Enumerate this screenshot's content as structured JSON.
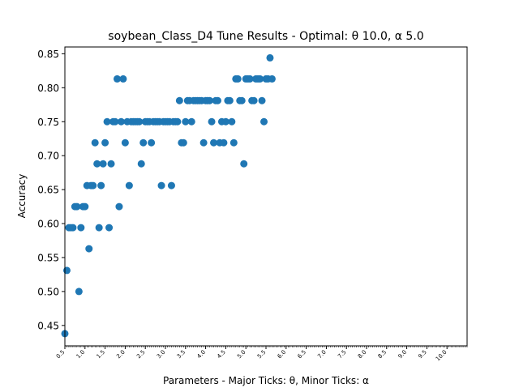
{
  "chart_data": {
    "type": "scatter",
    "title": "soybean_Class_D4 Tune Results - Optimal: θ 10.0, α 5.0",
    "xlabel": "Parameters - Major Ticks: θ, Minor Ticks: α",
    "ylabel": "Accuracy",
    "xlim": [
      0.5,
      10.5
    ],
    "ylim": [
      0.42,
      0.86
    ],
    "grid": false,
    "point_color": "#1f77b4",
    "x_major_ticks": [
      "0.5",
      "1.0",
      "1.5",
      "2.0",
      "2.5",
      "3.0",
      "3.5",
      "4.0",
      "4.5",
      "5.0",
      "5.5",
      "6.0",
      "6.5",
      "7.0",
      "7.5",
      "8.0",
      "8.5",
      "9.0",
      "9.5",
      "10.0"
    ],
    "y_ticks": [
      "0.45",
      "0.50",
      "0.55",
      "0.60",
      "0.65",
      "0.70",
      "0.75",
      "0.80",
      "0.85"
    ],
    "points": [
      {
        "x": 0.5,
        "y": 0.438
      },
      {
        "x": 0.55,
        "y": 0.531
      },
      {
        "x": 0.6,
        "y": 0.594
      },
      {
        "x": 0.65,
        "y": 0.594
      },
      {
        "x": 0.7,
        "y": 0.594
      },
      {
        "x": 0.75,
        "y": 0.625
      },
      {
        "x": 0.8,
        "y": 0.625
      },
      {
        "x": 0.85,
        "y": 0.5
      },
      {
        "x": 0.9,
        "y": 0.594
      },
      {
        "x": 0.95,
        "y": 0.625
      },
      {
        "x": 1.0,
        "y": 0.625
      },
      {
        "x": 1.05,
        "y": 0.656
      },
      {
        "x": 1.1,
        "y": 0.563
      },
      {
        "x": 1.15,
        "y": 0.656
      },
      {
        "x": 1.2,
        "y": 0.656
      },
      {
        "x": 1.25,
        "y": 0.719
      },
      {
        "x": 1.3,
        "y": 0.688
      },
      {
        "x": 1.35,
        "y": 0.594
      },
      {
        "x": 1.4,
        "y": 0.656
      },
      {
        "x": 1.45,
        "y": 0.688
      },
      {
        "x": 1.5,
        "y": 0.719
      },
      {
        "x": 1.55,
        "y": 0.75
      },
      {
        "x": 1.6,
        "y": 0.594
      },
      {
        "x": 1.65,
        "y": 0.688
      },
      {
        "x": 1.7,
        "y": 0.75
      },
      {
        "x": 1.75,
        "y": 0.75
      },
      {
        "x": 1.8,
        "y": 0.813
      },
      {
        "x": 1.85,
        "y": 0.625
      },
      {
        "x": 1.9,
        "y": 0.75
      },
      {
        "x": 1.95,
        "y": 0.813
      },
      {
        "x": 2.0,
        "y": 0.719
      },
      {
        "x": 2.05,
        "y": 0.75
      },
      {
        "x": 2.1,
        "y": 0.656
      },
      {
        "x": 2.15,
        "y": 0.75
      },
      {
        "x": 2.2,
        "y": 0.75
      },
      {
        "x": 2.25,
        "y": 0.75
      },
      {
        "x": 2.3,
        "y": 0.75
      },
      {
        "x": 2.35,
        "y": 0.75
      },
      {
        "x": 2.4,
        "y": 0.688
      },
      {
        "x": 2.45,
        "y": 0.719
      },
      {
        "x": 2.5,
        "y": 0.75
      },
      {
        "x": 2.55,
        "y": 0.75
      },
      {
        "x": 2.6,
        "y": 0.75
      },
      {
        "x": 2.65,
        "y": 0.719
      },
      {
        "x": 2.7,
        "y": 0.75
      },
      {
        "x": 2.75,
        "y": 0.75
      },
      {
        "x": 2.8,
        "y": 0.75
      },
      {
        "x": 2.85,
        "y": 0.75
      },
      {
        "x": 2.9,
        "y": 0.656
      },
      {
        "x": 2.95,
        "y": 0.75
      },
      {
        "x": 3.0,
        "y": 0.75
      },
      {
        "x": 3.05,
        "y": 0.75
      },
      {
        "x": 3.1,
        "y": 0.75
      },
      {
        "x": 3.15,
        "y": 0.656
      },
      {
        "x": 3.2,
        "y": 0.75
      },
      {
        "x": 3.25,
        "y": 0.75
      },
      {
        "x": 3.3,
        "y": 0.75
      },
      {
        "x": 3.35,
        "y": 0.781
      },
      {
        "x": 3.4,
        "y": 0.719
      },
      {
        "x": 3.45,
        "y": 0.719
      },
      {
        "x": 3.5,
        "y": 0.75
      },
      {
        "x": 3.55,
        "y": 0.781
      },
      {
        "x": 3.6,
        "y": 0.781
      },
      {
        "x": 3.65,
        "y": 0.75
      },
      {
        "x": 3.7,
        "y": 0.781
      },
      {
        "x": 3.75,
        "y": 0.781
      },
      {
        "x": 3.8,
        "y": 0.781
      },
      {
        "x": 3.85,
        "y": 0.781
      },
      {
        "x": 3.9,
        "y": 0.781
      },
      {
        "x": 3.95,
        "y": 0.719
      },
      {
        "x": 4.0,
        "y": 0.781
      },
      {
        "x": 4.05,
        "y": 0.781
      },
      {
        "x": 4.1,
        "y": 0.781
      },
      {
        "x": 4.15,
        "y": 0.75
      },
      {
        "x": 4.2,
        "y": 0.719
      },
      {
        "x": 4.25,
        "y": 0.781
      },
      {
        "x": 4.3,
        "y": 0.781
      },
      {
        "x": 4.35,
        "y": 0.719
      },
      {
        "x": 4.4,
        "y": 0.75
      },
      {
        "x": 4.45,
        "y": 0.719
      },
      {
        "x": 4.5,
        "y": 0.75
      },
      {
        "x": 4.55,
        "y": 0.781
      },
      {
        "x": 4.6,
        "y": 0.781
      },
      {
        "x": 4.65,
        "y": 0.75
      },
      {
        "x": 4.7,
        "y": 0.719
      },
      {
        "x": 4.75,
        "y": 0.813
      },
      {
        "x": 4.8,
        "y": 0.813
      },
      {
        "x": 4.85,
        "y": 0.781
      },
      {
        "x": 4.9,
        "y": 0.781
      },
      {
        "x": 4.95,
        "y": 0.688
      },
      {
        "x": 5.0,
        "y": 0.813
      },
      {
        "x": 5.05,
        "y": 0.813
      },
      {
        "x": 5.1,
        "y": 0.813
      },
      {
        "x": 5.15,
        "y": 0.781
      },
      {
        "x": 5.2,
        "y": 0.781
      },
      {
        "x": 5.25,
        "y": 0.813
      },
      {
        "x": 5.3,
        "y": 0.813
      },
      {
        "x": 5.35,
        "y": 0.813
      },
      {
        "x": 5.4,
        "y": 0.781
      },
      {
        "x": 5.45,
        "y": 0.75
      },
      {
        "x": 5.5,
        "y": 0.813
      },
      {
        "x": 5.55,
        "y": 0.813
      },
      {
        "x": 5.6,
        "y": 0.844
      },
      {
        "x": 5.65,
        "y": 0.813
      }
    ]
  }
}
